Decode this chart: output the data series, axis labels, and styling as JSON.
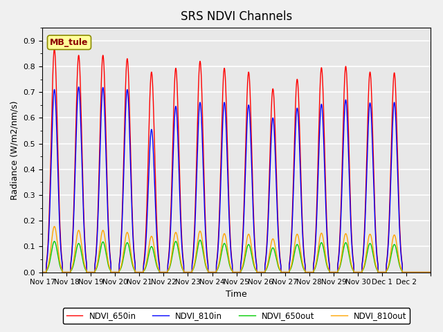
{
  "title": "SRS NDVI Channels",
  "xlabel": "Time",
  "ylabel": "Radiance (W/m2/nm/s)",
  "ylim": [
    0.0,
    0.95
  ],
  "yticks": [
    0.0,
    0.1,
    0.2,
    0.3,
    0.4,
    0.5,
    0.6,
    0.7,
    0.8,
    0.9
  ],
  "annotation": "MB_tule",
  "colors": {
    "NDVI_650in": "#ff0000",
    "NDVI_810in": "#0000ff",
    "NDVI_650out": "#00cc00",
    "NDVI_810out": "#ffa500"
  },
  "line_width": 1.0,
  "num_days": 16,
  "peak_650in": [
    0.868,
    0.843,
    0.843,
    0.83,
    0.778,
    0.793,
    0.82,
    0.793,
    0.778,
    0.713,
    0.75,
    0.795,
    0.8,
    0.778,
    0.775,
    0.0
  ],
  "peak_810in": [
    0.71,
    0.72,
    0.718,
    0.71,
    0.555,
    0.645,
    0.66,
    0.66,
    0.65,
    0.6,
    0.638,
    0.653,
    0.67,
    0.658,
    0.66,
    0.0
  ],
  "peak_650out": [
    0.12,
    0.112,
    0.118,
    0.115,
    0.1,
    0.12,
    0.125,
    0.112,
    0.108,
    0.095,
    0.108,
    0.115,
    0.115,
    0.112,
    0.108,
    0.0
  ],
  "peak_810out": [
    0.178,
    0.163,
    0.163,
    0.155,
    0.14,
    0.155,
    0.16,
    0.15,
    0.148,
    0.13,
    0.148,
    0.152,
    0.15,
    0.148,
    0.145,
    0.0
  ],
  "background_color": "#e8e8e8",
  "grid_color": "#ffffff",
  "tick_date_labels": [
    "Nov 17",
    "Nov 18",
    "Nov 19",
    "Nov 20",
    "Nov 21",
    "Nov 22",
    "Nov 23",
    "Nov 24",
    "Nov 25",
    "Nov 26",
    "Nov 27",
    "Nov 28",
    "Nov 29",
    "Nov 30",
    "Dec 1",
    "Dec 2",
    ""
  ]
}
